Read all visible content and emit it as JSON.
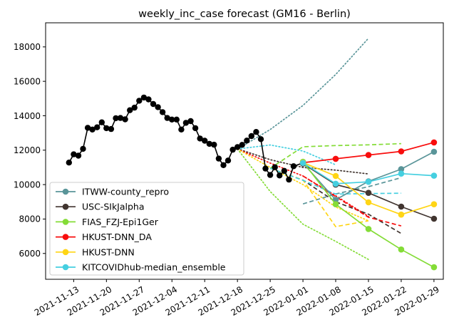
{
  "chart_data": {
    "type": "line",
    "title": "weekly_inc_case forecast (GM16 - Berlin)",
    "xlabel": "",
    "ylabel": "",
    "x_ticks": [
      "2021-11-13",
      "2021-11-20",
      "2021-11-27",
      "2021-12-04",
      "2021-12-11",
      "2021-12-18",
      "2021-12-25",
      "2022-01-01",
      "2022-01-08",
      "2022-01-15",
      "2022-01-22",
      "2022-01-29"
    ],
    "y_ticks": [
      6000,
      8000,
      10000,
      12000,
      14000,
      16000,
      18000
    ],
    "xlim": [
      "2021-11-07",
      "2022-01-31"
    ],
    "ylim": [
      4500,
      19400
    ],
    "grid": false,
    "legend_position": "lower-left",
    "observed": {
      "color": "#000000",
      "points": [
        [
          "2021-11-12",
          11280
        ],
        [
          "2021-11-13",
          11760
        ],
        [
          "2021-11-14",
          11680
        ],
        [
          "2021-11-15",
          12080
        ],
        [
          "2021-11-16",
          13300
        ],
        [
          "2021-11-17",
          13200
        ],
        [
          "2021-11-18",
          13330
        ],
        [
          "2021-11-19",
          13620
        ],
        [
          "2021-11-20",
          13280
        ],
        [
          "2021-11-21",
          13230
        ],
        [
          "2021-11-22",
          13860
        ],
        [
          "2021-11-23",
          13870
        ],
        [
          "2021-11-24",
          13790
        ],
        [
          "2021-11-25",
          14320
        ],
        [
          "2021-11-26",
          14470
        ],
        [
          "2021-11-27",
          14870
        ],
        [
          "2021-11-28",
          15060
        ],
        [
          "2021-11-29",
          14950
        ],
        [
          "2021-11-30",
          14680
        ],
        [
          "2021-12-01",
          14500
        ],
        [
          "2021-12-02",
          14210
        ],
        [
          "2021-12-03",
          13870
        ],
        [
          "2021-12-04",
          13780
        ],
        [
          "2021-12-05",
          13780
        ],
        [
          "2021-12-06",
          13200
        ],
        [
          "2021-12-07",
          13590
        ],
        [
          "2021-12-08",
          13690
        ],
        [
          "2021-12-09",
          13280
        ],
        [
          "2021-12-10",
          12680
        ],
        [
          "2021-12-11",
          12550
        ],
        [
          "2021-12-12",
          12370
        ],
        [
          "2021-12-13",
          12320
        ],
        [
          "2021-12-14",
          11510
        ],
        [
          "2021-12-15",
          11130
        ],
        [
          "2021-12-16",
          11400
        ],
        [
          "2021-12-17",
          12030
        ],
        [
          "2021-12-18",
          12180
        ],
        [
          "2021-12-19",
          12310
        ],
        [
          "2021-12-20",
          12560
        ],
        [
          "2021-12-21",
          12820
        ],
        [
          "2021-12-22",
          13060
        ],
        [
          "2021-12-23",
          12640
        ],
        [
          "2021-12-24",
          10930
        ],
        [
          "2021-12-25",
          10560
        ],
        [
          "2021-12-26",
          11010
        ],
        [
          "2021-12-27",
          10530
        ],
        [
          "2021-12-28",
          10800
        ],
        [
          "2021-12-29",
          10290
        ],
        [
          "2021-12-30",
          11070
        ],
        [
          "2022-01-01",
          11260
        ]
      ]
    },
    "series": [
      {
        "name": "ITWW-county_repro",
        "color": "#5a9599",
        "forecast": [
          [
            "2022-01-01",
            11250
          ],
          [
            "2022-01-08",
            9120
          ],
          [
            "2022-01-15",
            10190
          ],
          [
            "2022-01-22",
            10900
          ],
          [
            "2022-01-29",
            11910
          ]
        ],
        "dashed": [
          [
            "2022-01-01",
            8880
          ],
          [
            "2022-01-08",
            9460
          ],
          [
            "2022-01-15",
            9880
          ],
          [
            "2022-01-22",
            10400
          ]
        ],
        "dotted": [
          [
            "2021-12-18",
            12060
          ],
          [
            "2021-12-25",
            13200
          ],
          [
            "2022-01-01",
            14600
          ],
          [
            "2022-01-08",
            16400
          ],
          [
            "2022-01-15",
            18500
          ]
        ]
      },
      {
        "name": "USC-SIkJalpha",
        "color": "#413530",
        "forecast": [
          [
            "2022-01-01",
            11220
          ],
          [
            "2022-01-08",
            10000
          ],
          [
            "2022-01-15",
            9520
          ],
          [
            "2022-01-22",
            8720
          ],
          [
            "2022-01-29",
            8020
          ]
        ],
        "dashed": [
          [
            "2021-12-25",
            10950
          ],
          [
            "2022-01-01",
            10260
          ],
          [
            "2022-01-08",
            9000
          ],
          [
            "2022-01-15",
            8280
          ],
          [
            "2022-01-22",
            7160
          ]
        ],
        "dotted": [
          [
            "2021-12-18",
            12080
          ],
          [
            "2021-12-25",
            11450
          ],
          [
            "2022-01-01",
            11000
          ],
          [
            "2022-01-08",
            10840
          ],
          [
            "2022-01-15",
            10620
          ]
        ]
      },
      {
        "name": "FIAS_FZJ-Epi1Ger",
        "color": "#84dc37",
        "forecast": [
          [
            "2022-01-01",
            11330
          ],
          [
            "2022-01-08",
            8860
          ],
          [
            "2022-01-15",
            7420
          ],
          [
            "2022-01-22",
            6230
          ],
          [
            "2022-01-29",
            5200
          ]
        ],
        "dashed": [
          [
            "2021-12-25",
            10950
          ],
          [
            "2022-01-01",
            12200
          ],
          [
            "2022-01-08",
            12270
          ],
          [
            "2022-01-15",
            12310
          ],
          [
            "2022-01-22",
            12380
          ]
        ],
        "dotted": [
          [
            "2021-12-18",
            12070
          ],
          [
            "2021-12-25",
            9600
          ],
          [
            "2022-01-01",
            7700
          ],
          [
            "2022-01-08",
            6700
          ],
          [
            "2022-01-15",
            5650
          ]
        ]
      },
      {
        "name": "HKUST-DNN_DA",
        "color": "#f80d0d",
        "forecast": [
          [
            "2022-01-01",
            11270
          ],
          [
            "2022-01-08",
            11500
          ],
          [
            "2022-01-15",
            11720
          ],
          [
            "2022-01-22",
            11930
          ],
          [
            "2022-01-29",
            12450
          ]
        ],
        "dashed": [
          [
            "2022-01-01",
            10500
          ],
          [
            "2022-01-08",
            9300
          ],
          [
            "2022-01-15",
            8100
          ],
          [
            "2022-01-22",
            7600
          ]
        ],
        "dotted": [
          [
            "2021-12-18",
            12060
          ],
          [
            "2021-12-25",
            11250
          ],
          [
            "2022-01-01",
            10500
          ],
          [
            "2022-01-08",
            9350
          ],
          [
            "2022-01-15",
            8150
          ]
        ]
      },
      {
        "name": "HKUST-DNN",
        "color": "#ffd515",
        "forecast": [
          [
            "2022-01-01",
            11280
          ],
          [
            "2022-01-08",
            10500
          ],
          [
            "2022-01-15",
            8970
          ],
          [
            "2022-01-22",
            8260
          ],
          [
            "2022-01-29",
            8860
          ]
        ],
        "dashed": [
          [
            "2021-12-25",
            10950
          ],
          [
            "2022-01-01",
            10260
          ],
          [
            "2022-01-08",
            7560
          ],
          [
            "2022-01-15",
            7900
          ]
        ],
        "dotted": [
          [
            "2021-12-18",
            12060
          ],
          [
            "2021-12-25",
            11000
          ],
          [
            "2022-01-01",
            10000
          ],
          [
            "2022-01-08",
            8700
          ],
          [
            "2022-01-15",
            7900
          ]
        ]
      },
      {
        "name": "KITCOVIDhub-median_ensemble",
        "color": "#45cfe0",
        "forecast": [
          [
            "2022-01-01",
            11260
          ],
          [
            "2022-01-08",
            10050
          ],
          [
            "2022-01-15",
            10160
          ],
          [
            "2022-01-22",
            10640
          ],
          [
            "2022-01-29",
            10520
          ]
        ],
        "dashed": [
          [
            "2021-12-25",
            10950
          ],
          [
            "2022-01-01",
            10250
          ],
          [
            "2022-01-08",
            9450
          ],
          [
            "2022-01-15",
            9480
          ],
          [
            "2022-01-22",
            9500
          ]
        ],
        "dotted": [
          [
            "2021-12-18",
            12070
          ],
          [
            "2021-12-25",
            12300
          ],
          [
            "2022-01-01",
            11950
          ],
          [
            "2022-01-08",
            11150
          ]
        ]
      }
    ]
  }
}
